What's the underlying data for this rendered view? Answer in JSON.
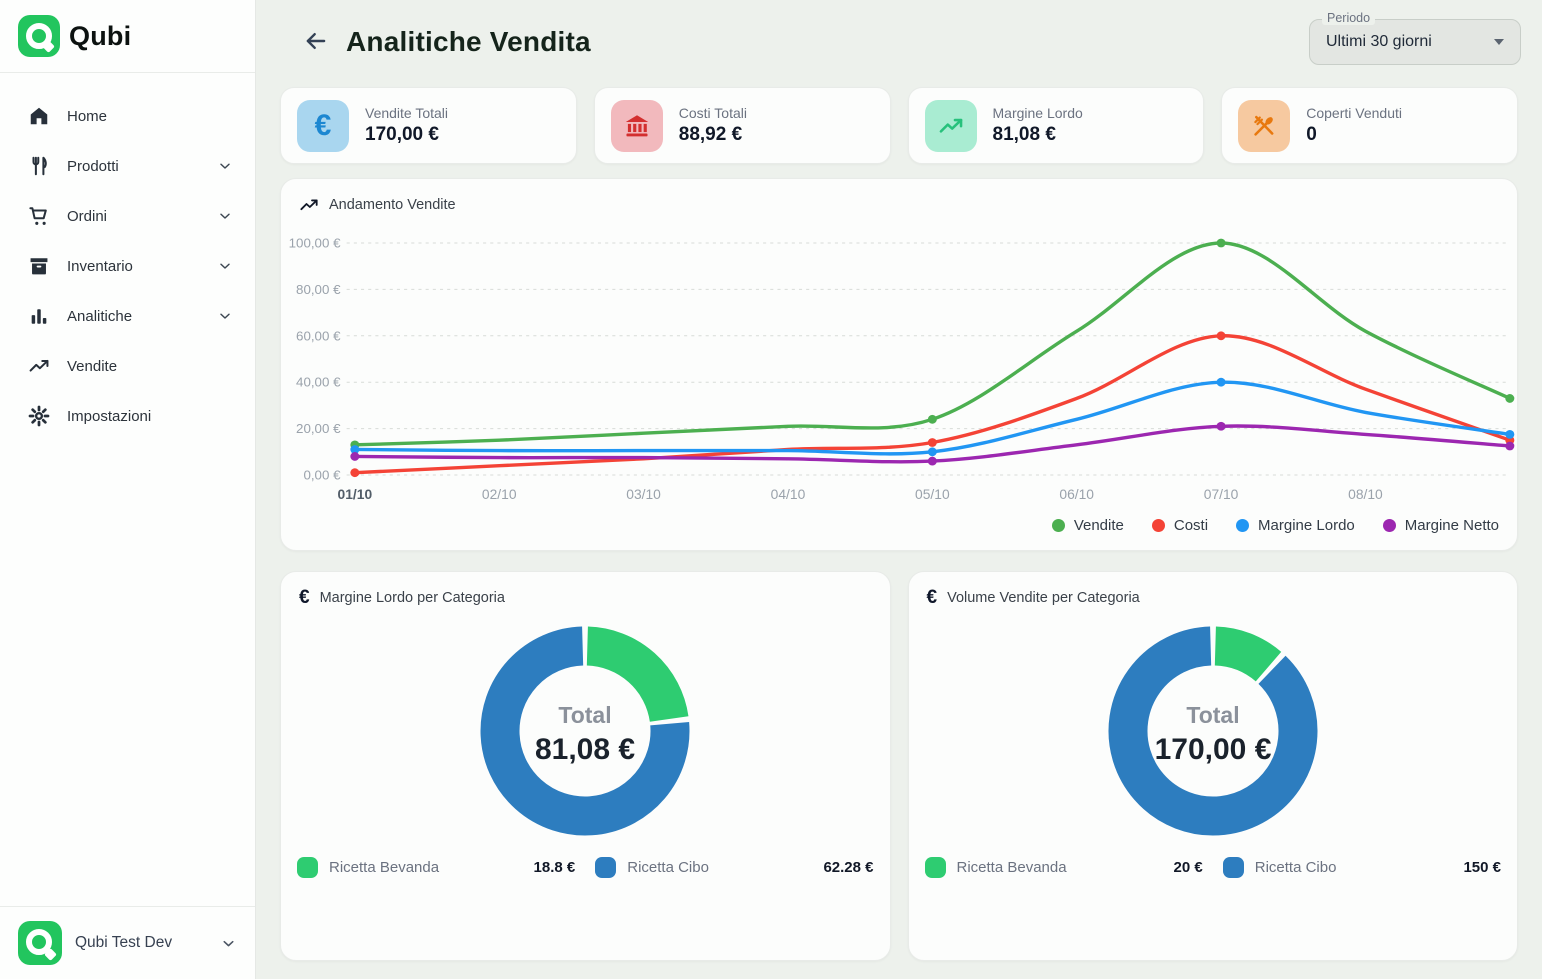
{
  "brand": {
    "name": "Qubi",
    "accent_color": "#22c55e"
  },
  "sidebar": {
    "items": [
      {
        "label": "Home",
        "icon": "home-icon",
        "expandable": false
      },
      {
        "label": "Prodotti",
        "icon": "utensils-icon",
        "expandable": true
      },
      {
        "label": "Ordini",
        "icon": "cart-icon",
        "expandable": true
      },
      {
        "label": "Inventario",
        "icon": "archive-icon",
        "expandable": true
      },
      {
        "label": "Analitiche",
        "icon": "bar-chart-icon",
        "expandable": true
      },
      {
        "label": "Vendite",
        "icon": "trending-up-icon",
        "expandable": false
      },
      {
        "label": "Impostazioni",
        "icon": "gear-icon",
        "expandable": false
      }
    ],
    "footer": {
      "label": "Qubi Test Dev"
    }
  },
  "header": {
    "title": "Analitiche Vendita",
    "period_label": "Periodo",
    "period_value": "Ultimi 30 giorni"
  },
  "stats": [
    {
      "label": "Vendite Totali",
      "value": "170,00 €",
      "icon": "euro-icon",
      "icon_color": "#1c87d1",
      "icon_bg": "#a9d6ef"
    },
    {
      "label": "Costi Totali",
      "value": "88,92 €",
      "icon": "bank-icon",
      "icon_color": "#d32f2f",
      "icon_bg": "#f2b9bd"
    },
    {
      "label": "Margine Lordo",
      "value": "81,08 €",
      "icon": "trend-icon",
      "icon_color": "#27c17c",
      "icon_bg": "#a9ecd2"
    },
    {
      "label": "Coperti Venduti",
      "value": "0",
      "icon": "utensils-crossed-icon",
      "icon_color": "#e8790f",
      "icon_bg": "#f6c9a0"
    }
  ],
  "chart_data": [
    {
      "type": "line",
      "title": "Andamento Vendite",
      "x": [
        "01/10",
        "02/10",
        "03/10",
        "04/10",
        "05/10",
        "06/10",
        "07/10",
        "08/10",
        ""
      ],
      "series": [
        {
          "name": "Vendite",
          "color": "#4caf50",
          "values": [
            13,
            15,
            18,
            21,
            24,
            62,
            100,
            62,
            33
          ]
        },
        {
          "name": "Costi",
          "color": "#f44336",
          "values": [
            1,
            4,
            7,
            11,
            14,
            33,
            60,
            37,
            15
          ]
        },
        {
          "name": "Margine Lordo",
          "color": "#2196f3",
          "values": [
            11,
            10.5,
            10.5,
            10.5,
            10,
            24,
            40,
            27,
            17.5
          ]
        },
        {
          "name": "Margine Netto",
          "color": "#9c27b0",
          "values": [
            8,
            7.5,
            7.5,
            7,
            6,
            13,
            21,
            17.5,
            12.5
          ]
        }
      ],
      "ylim": [
        0,
        100
      ],
      "y_ticks": [
        "0,00 €",
        "20,00 €",
        "40,00 €",
        "60,00 €",
        "80,00 €",
        "100,00 €"
      ],
      "marker_indices": [
        0,
        4,
        6,
        8
      ],
      "grid": "dashed horizontal",
      "legend_position": "bottom-right"
    },
    {
      "type": "donut",
      "title": "Margine Lordo per Categoria",
      "center_label": "Total",
      "center_value": "81,08 €",
      "slices": [
        {
          "name": "Ricetta Bevanda",
          "value": 18.8,
          "display": "18.8 €",
          "color": "#2ecc71"
        },
        {
          "name": "Ricetta Cibo",
          "value": 62.28,
          "display": "62.28 €",
          "color": "#2d7dbf"
        }
      ]
    },
    {
      "type": "donut",
      "title": "Volume Vendite per Categoria",
      "center_label": "Total",
      "center_value": "170,00 €",
      "slices": [
        {
          "name": "Ricetta Bevanda",
          "value": 20,
          "display": "20 €",
          "color": "#2ecc71"
        },
        {
          "name": "Ricetta Cibo",
          "value": 150,
          "display": "150 €",
          "color": "#2d7dbf"
        }
      ]
    }
  ]
}
